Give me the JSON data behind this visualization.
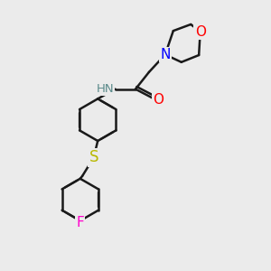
{
  "background_color": "#ebebeb",
  "bond_color": "#1a1a1a",
  "bond_width": 1.8,
  "atom_colors": {
    "N": "#0000ff",
    "O": "#ff0000",
    "S": "#b8b800",
    "F": "#ff00cc",
    "H": "#5a8a8a",
    "C": "#1a1a1a"
  },
  "font_size_atom": 10,
  "fig_width": 3.0,
  "fig_height": 3.0,
  "xlim": [
    0,
    10
  ],
  "ylim": [
    0,
    10
  ]
}
